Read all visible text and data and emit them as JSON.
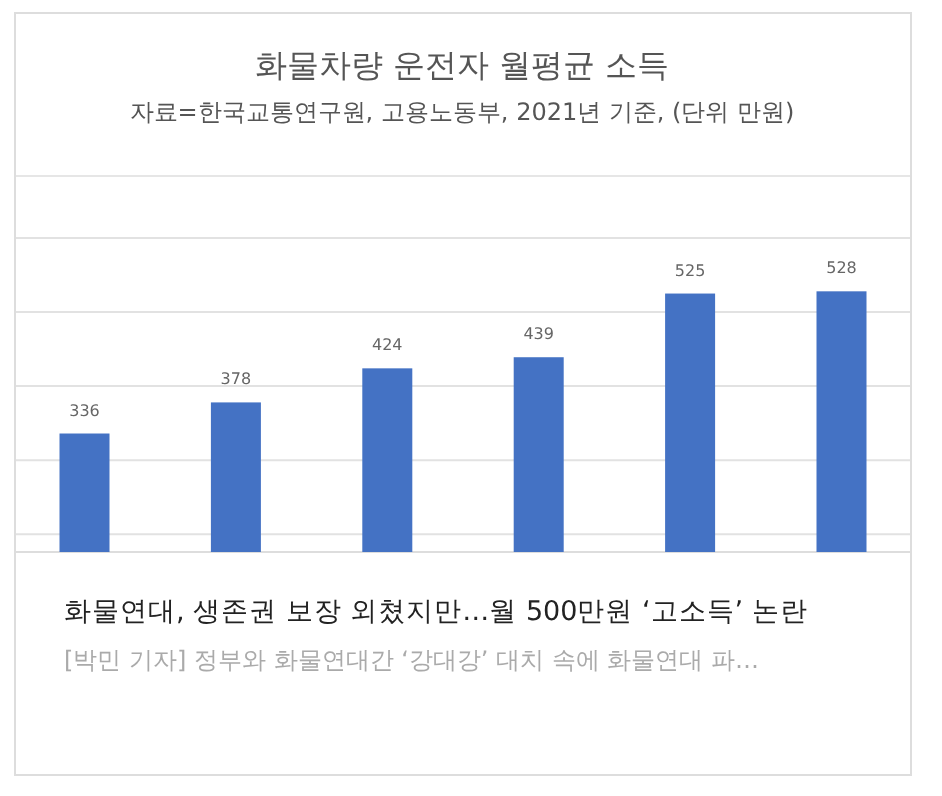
{
  "chart_data": {
    "type": "bar",
    "title": "화물차량 운전자 월평균 소득",
    "subtitle": "자료=한국교통연구원, 고용노동부, 2021년 기준, (단위 만원)",
    "categories": [
      null,
      null,
      null,
      null,
      null,
      null
    ],
    "values": [
      336,
      378,
      424,
      439,
      525,
      528
    ],
    "color": "#4472c4",
    "ylim": [
      176,
      600
    ],
    "yticks": [
      {
        "value": 200,
        "label": null
      },
      {
        "value": 300,
        "label": null
      },
      {
        "value": 400,
        "label": null
      },
      {
        "value": 500,
        "label": null
      },
      {
        "value": 600,
        "label": null
      }
    ],
    "grid": "y",
    "data_labels": true,
    "annotations": [
      "화물연대, 생존권 보장 외쳤지만…월 500만원 ‘고소득’ 논란",
      "[박민 기자] 정부와 화물연대간 ‘강대강’ 대치 속에 화물연대 파…"
    ]
  }
}
